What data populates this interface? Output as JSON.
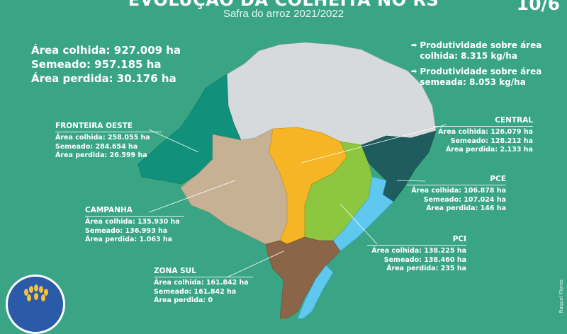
{
  "header": {
    "title": "EVOLUÇÃO DA COLHEITA NO RS",
    "subtitle": "Safra do arroz 2021/2022",
    "date": "10/6"
  },
  "totals": {
    "harvested": "Área colhida: 927.009 ha",
    "sown": "Semeado: 957.185 ha",
    "lost": "Área perdida: 30.176 ha"
  },
  "productivity": [
    "Produtividade sobre área colhida: 8.315 kg/ha",
    "Produtividade sobre área semeada: 8.053 kg/ha"
  ],
  "regions": {
    "fronteira_oeste": {
      "name": "FRONTEIRA OESTE",
      "harvested": "Área colhida: 258.055 ha",
      "sown": "Semeado: 284.654 ha",
      "lost": "Área perdida: 26.599 ha",
      "color": "#11917b"
    },
    "campanha": {
      "name": "CAMPANHA",
      "harvested": "Área colhida: 135.930 ha",
      "sown": "Semeado: 136.993 ha",
      "lost": "Área perdida: 1.063 ha",
      "color": "#c6b195"
    },
    "central": {
      "name": "CENTRAL",
      "harvested": "Área colhida: 126.079 ha",
      "sown": "Semeado: 128.212 ha",
      "lost": "Área perdida: 2.133 ha",
      "color": "#f6b524"
    },
    "pce": {
      "name": "PCE",
      "harvested": "Área colhida: 106.878 ha",
      "sown": "Semeado: 107.024 ha",
      "lost": "Área perdida: 146 ha",
      "color": "#8dc63f"
    },
    "pci": {
      "name": "PCI",
      "harvested": "Área colhida: 138.225 ha",
      "sown": "Semeado: 138.460 ha",
      "lost": "Área perdida: 235 ha",
      "color": "#1f5c5e"
    },
    "zona_sul": {
      "name": "ZONA SUL",
      "harvested": "Área colhida: 161.842 ha",
      "sown": "Semeado: 161.842 ha",
      "lost": "Área perdida: 0",
      "color": "#8a6547"
    }
  },
  "colors": {
    "background": "#3aa585",
    "non_rice": "#d7dadc",
    "lagoon": "#5ec8ef",
    "leader": "#ffffff"
  },
  "credit": "Raquel Flores"
}
